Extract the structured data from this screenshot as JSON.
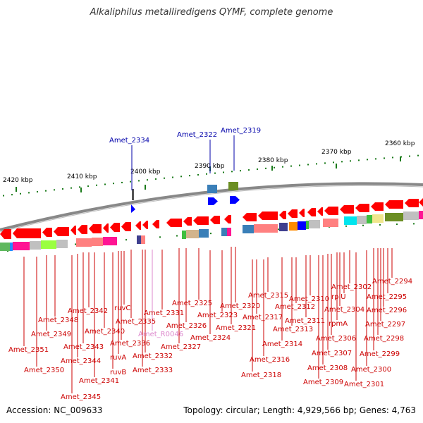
{
  "title": "Alkaliphilus metalliredigens QYMF, complete genome",
  "footer": {
    "accession": "Accession: NC_009633",
    "summary": "Topology: circular; Length: 4,929,566 bp; Genes: 4,763"
  },
  "scale_labels": [
    "2420 kbp",
    "2410 kbp",
    "2400 kbp",
    "2390 kbp",
    "2380 kbp",
    "2370 kbp",
    "2360 kbp"
  ],
  "top_genes": [
    "Amet_2334",
    "Amet_2322",
    "Amet_2319"
  ],
  "bottom_genes": [
    "Amet_2294",
    "Amet_2295",
    "Amet_2296",
    "Amet_2297",
    "Amet_2298",
    "Amet_2299",
    "Amet_2300",
    "Amet_2301",
    "Amet_2302",
    "rplU",
    "Amet_2304",
    "rpmA",
    "Amet_2306",
    "Amet_2307",
    "Amet_2308",
    "Amet_2309",
    "Amet_2310",
    "Amet_2311",
    "Amet_2312",
    "Amet_2313",
    "Amet_2314",
    "Amet_2315",
    "Amet_2316",
    "Amet_2317",
    "Amet_2318",
    "Amet_2320",
    "Amet_2321",
    "Amet_2323",
    "Amet_2324",
    "Amet_2325",
    "Amet_2326",
    "Amet_2327",
    "Amet_2331",
    "Amet_R0046",
    "Amet_2332",
    "Amet_2333",
    "Amet_2335",
    "ruvC",
    "Amet_2336",
    "ruvA",
    "ruvB",
    "Amet_2340",
    "Amet_2341",
    "Amet_2342",
    "Amet_2343",
    "Amet_2344",
    "Amet_2345",
    "Amet_2348",
    "Amet_2349",
    "Amet_2350",
    "Amet_2351"
  ],
  "colors": {
    "gene_red": "#ff0000",
    "gene_blue": "#0000ff",
    "label_red": "#cc0000",
    "label_blue": "#0000aa",
    "label_pink": "#dd88cc",
    "tick_green": "#1a7a1a",
    "backbone": "#888888"
  }
}
